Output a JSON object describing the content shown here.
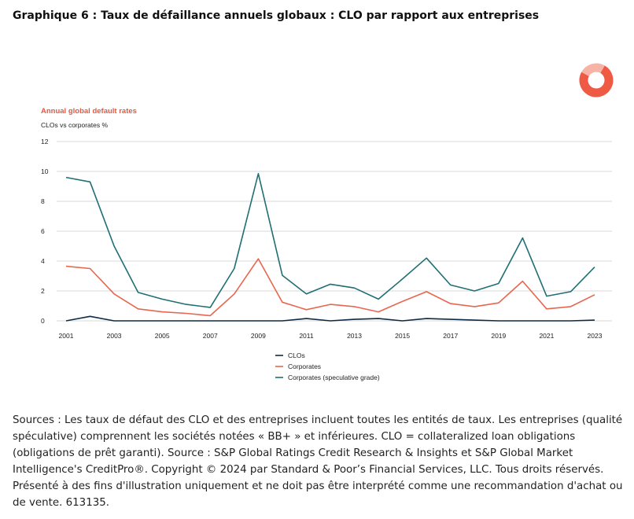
{
  "title": "Graphique 6 : Taux de défaillance annuels globaux : CLO par rapport aux entreprises",
  "footnote": "Sources : Les taux de défaut des CLO et des entreprises incluent toutes les entités de taux. Les entreprises (qualité spéculative) comprennent les sociétés notées « BB+ » et inférieures. CLO = collateralized loan obligations (obligations de prêt garanti). Source : S&P Global Ratings Credit Research & Insights et S&P Global Market Intelligence's CreditPro®. Copyright © 2024 par Standard & Poor’s Financial Services, LLC. Tous droits réservés. Présenté à des fins d'illustration uniquement et ne doit pas être interprété comme une recommandation d'achat ou de vente. 613135.",
  "logo_icon": "sp-ring-logo-icon",
  "chart_data": {
    "type": "line",
    "title": "Annual global default rates",
    "ylabel": "CLOs vs corporates %",
    "xlabel": "",
    "ylim": [
      0,
      12
    ],
    "yticks": [
      "12",
      "10",
      "8",
      "6",
      "4",
      "2",
      "0"
    ],
    "x": [
      2001,
      2002,
      2003,
      2004,
      2005,
      2006,
      2007,
      2008,
      2009,
      2010,
      2011,
      2012,
      2013,
      2014,
      2015,
      2016,
      2017,
      2018,
      2019,
      2020,
      2021,
      2022,
      2023
    ],
    "xtick_labels": [
      "2001",
      "2003",
      "2005",
      "2007",
      "2009",
      "2011",
      "2013",
      "2015",
      "2017",
      "2019",
      "2021",
      "2023"
    ],
    "grid": true,
    "legend_position": "bottom",
    "series": [
      {
        "name": "CLOs",
        "color": "#0d2b45",
        "values": [
          0.0,
          0.3,
          0.0,
          0.0,
          0.0,
          0.0,
          0.0,
          0.0,
          0.0,
          0.0,
          0.15,
          0.0,
          0.1,
          0.15,
          0.0,
          0.15,
          0.1,
          0.05,
          0.0,
          0.0,
          0.0,
          0.0,
          0.05
        ]
      },
      {
        "name": "Corporates",
        "color": "#e8664f",
        "values": [
          3.65,
          3.5,
          1.8,
          0.8,
          0.6,
          0.5,
          0.35,
          1.8,
          4.15,
          1.25,
          0.75,
          1.1,
          0.95,
          0.6,
          1.3,
          1.95,
          1.15,
          0.95,
          1.2,
          2.65,
          0.8,
          0.95,
          1.75
        ]
      },
      {
        "name": "Corporates (speculative grade)",
        "color": "#1f6f73",
        "values": [
          9.6,
          9.3,
          5.0,
          1.9,
          1.45,
          1.1,
          0.9,
          3.5,
          9.85,
          3.05,
          1.8,
          2.45,
          2.2,
          1.45,
          2.8,
          4.2,
          2.4,
          2.0,
          2.5,
          5.55,
          1.65,
          1.95,
          3.6
        ]
      }
    ]
  }
}
